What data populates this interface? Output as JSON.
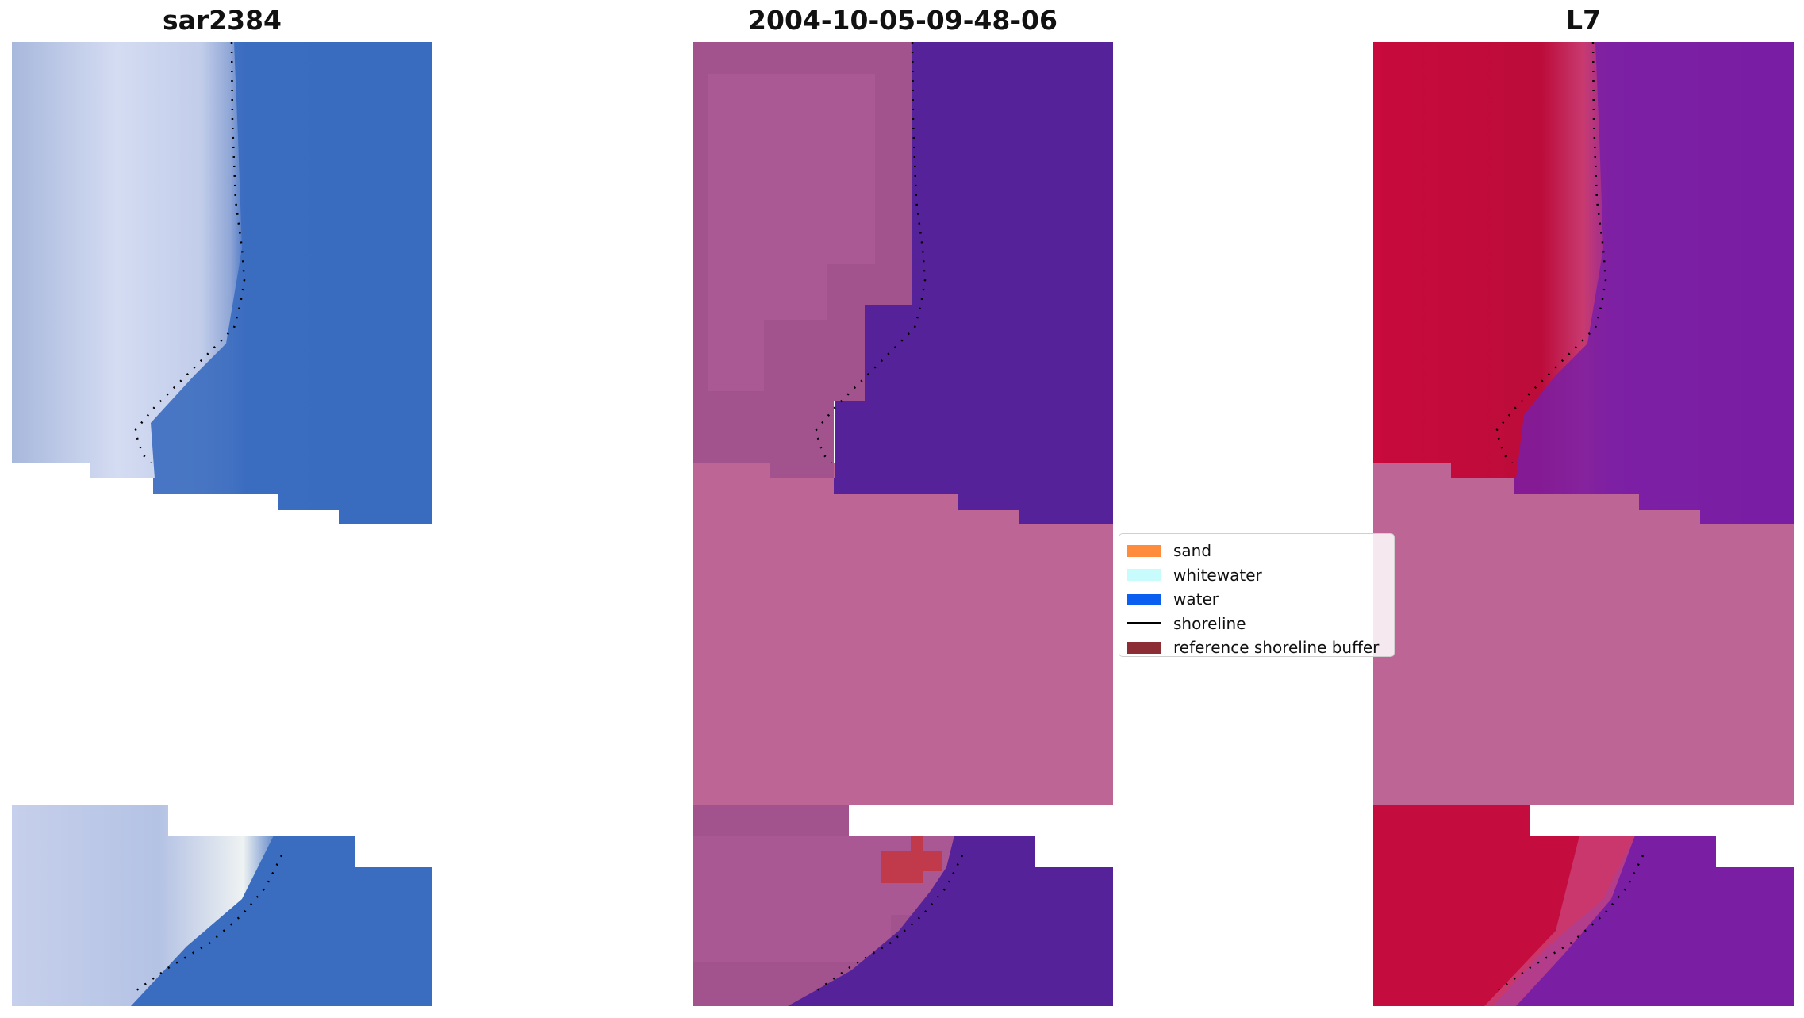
{
  "panels": [
    {
      "title": "sar2384"
    },
    {
      "title": "2004-10-05-09-48-06"
    },
    {
      "title": "L7"
    }
  ],
  "legend": {
    "items": [
      {
        "label": "sand",
        "type": "patch",
        "color": "#ff8c3c"
      },
      {
        "label": "whitewater",
        "type": "patch",
        "color": "#c8fcfc"
      },
      {
        "label": "water",
        "type": "patch",
        "color": "#0a5ef0"
      },
      {
        "label": "shoreline",
        "type": "line",
        "color": "#000000"
      },
      {
        "label": "reference shoreline buffer",
        "type": "patch",
        "color": "#8c2c34"
      }
    ]
  },
  "colors": {
    "rgb_water": "#3b6cc0",
    "rgb_land": "#b7c3e4",
    "class_water": "#55229a",
    "class_land": "#a2538e",
    "class_nodata": "#bd6595",
    "ndwi_land": "#c00a3e",
    "ndwi_water": "#7a1ea4",
    "ndwi_nodata": "#bd6595",
    "buffer_patch": "#c03a4c"
  }
}
